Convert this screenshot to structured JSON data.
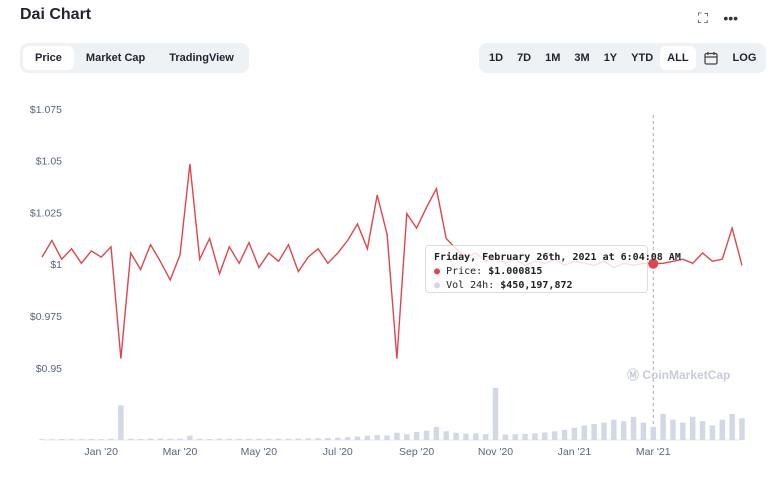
{
  "page": {
    "title": "Dai Chart",
    "tabs": [
      "Price",
      "Market Cap",
      "TradingView"
    ],
    "ranges": [
      "1D",
      "7D",
      "1M",
      "3M",
      "1Y",
      "YTD",
      "ALL"
    ],
    "log": "LOG",
    "watermark": "CoinMarketCap"
  },
  "tooltip": {
    "date": "Friday, February 26th, 2021 at 6:04:08 AM",
    "price_label": "Price:",
    "price": "$1.000815",
    "volume_label": "Vol 24h:",
    "volume": "$450,197,872"
  },
  "chart_data": {
    "type": "line",
    "categories": [
      null,
      null,
      null,
      null,
      null,
      null,
      "Jan '20",
      null,
      null,
      null,
      null,
      null,
      null,
      null,
      "Mar '20",
      null,
      null,
      null,
      null,
      null,
      null,
      null,
      "May '20",
      null,
      null,
      null,
      null,
      null,
      null,
      null,
      "Jul '20",
      null,
      null,
      null,
      null,
      null,
      null,
      null,
      "Sep '20",
      null,
      null,
      null,
      null,
      null,
      null,
      null,
      "Nov '20",
      null,
      null,
      null,
      null,
      null,
      null,
      null,
      "Jan '21",
      null,
      null,
      null,
      null,
      null,
      null,
      null,
      "Mar '21",
      null,
      null,
      null,
      null,
      null,
      null,
      null,
      null,
      null
    ],
    "series": [
      {
        "name": "Price",
        "color": "#e0464e",
        "values": [
          1.004,
          1.012,
          1.003,
          1.008,
          1.001,
          1.007,
          1.004,
          1.009,
          0.955,
          1.006,
          0.998,
          1.01,
          1.002,
          0.993,
          1.005,
          1.049,
          1.003,
          1.013,
          0.996,
          1.009,
          1.001,
          1.011,
          0.999,
          1.006,
          1.002,
          1.01,
          0.997,
          1.004,
          1.008,
          1.001,
          1.006,
          1.012,
          1.02,
          1.008,
          1.034,
          1.015,
          0.955,
          1.025,
          1.018,
          1.028,
          1.037,
          1.013,
          1.008,
          1.004,
          1.006,
          1.002,
          1.004,
          1.001,
          1.003,
          1.0,
          1.002,
          1.001,
          1.003,
          1.0,
          1.002,
          1.001,
          1.0,
          1.002,
          0.999,
          1.001,
          1.0,
          1.001,
          1.000815,
          1.001,
          1.002,
          1.003,
          1.001,
          1.006,
          1.002,
          1.003,
          1.018,
          1.0
        ]
      },
      {
        "name": "Vol 24h",
        "color": "#d3d8e6",
        "axis": "y2",
        "values": [
          30000000,
          25000000,
          35000000,
          30000000,
          28000000,
          32000000,
          30000000,
          40000000,
          1200000000,
          40000000,
          35000000,
          45000000,
          50000000,
          40000000,
          45000000,
          150000000,
          38000000,
          35000000,
          42000000,
          40000000,
          36000000,
          38000000,
          40000000,
          42000000,
          45000000,
          44000000,
          50000000,
          55000000,
          60000000,
          70000000,
          80000000,
          100000000,
          120000000,
          150000000,
          170000000,
          160000000,
          250000000,
          200000000,
          280000000,
          320000000,
          450000000,
          300000000,
          250000000,
          220000000,
          230000000,
          200000000,
          1800000000,
          190000000,
          200000000,
          210000000,
          230000000,
          260000000,
          300000000,
          350000000,
          420000000,
          500000000,
          550000000,
          600000000,
          700000000,
          650000000,
          800000000,
          600000000,
          450197872,
          900000000,
          700000000,
          600000000,
          800000000,
          650000000,
          500000000,
          700000000,
          900000000,
          750000000
        ]
      }
    ],
    "ylim": [
      0.95,
      1.075
    ],
    "yticks": [
      {
        "value": 0.95,
        "label": "$0.95"
      },
      {
        "value": 0.975,
        "label": "$0.975"
      },
      {
        "value": 1.0,
        "label": "$1"
      },
      {
        "value": 1.025,
        "label": "$1.025"
      },
      {
        "value": 1.05,
        "label": "$1.05"
      },
      {
        "value": 1.075,
        "label": "$1.075"
      }
    ],
    "y2lim": [
      0,
      2000000000
    ],
    "highlight": 62
  }
}
